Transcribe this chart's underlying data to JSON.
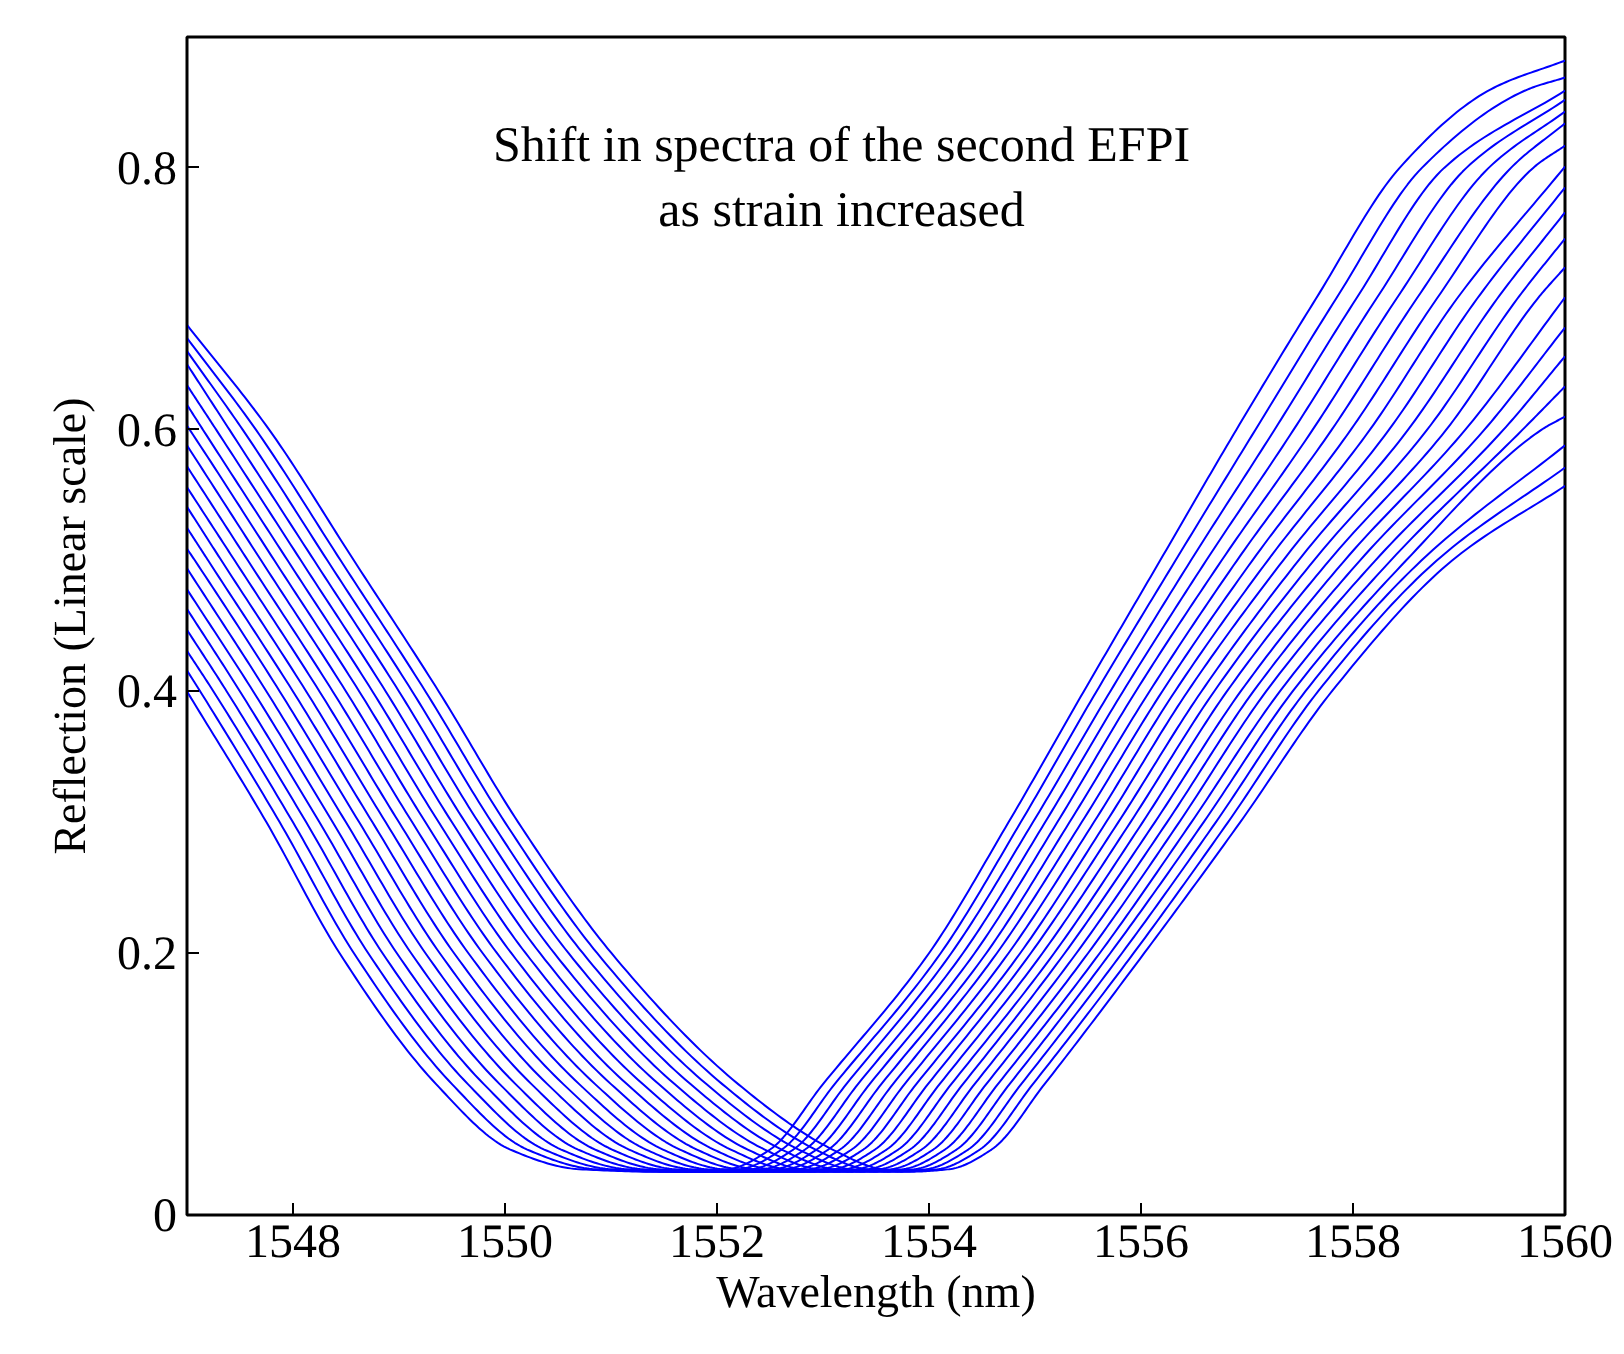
{
  "chart_data": {
    "type": "line",
    "xlabel": "Wavelength (nm)",
    "ylabel": "Reflection (Linear scale)",
    "annotations": [
      "Shift in spectra of the second EFPI\nas strain increased"
    ],
    "xlim": [
      1547,
      1560
    ],
    "ylim": [
      0,
      0.9
    ],
    "xticks": [
      1548,
      1550,
      1552,
      1554,
      1556,
      1558,
      1560
    ],
    "yticks": [
      0,
      0.2,
      0.4,
      0.6,
      0.8
    ],
    "grid": false,
    "series": [
      {
        "color": "#0000ff",
        "x": [
          1547,
          1547.75,
          1548.44,
          1549.35,
          1550.05,
          1550.7,
          1551.5,
          1552.1,
          1552.5,
          1553.0,
          1554.0,
          1554.75,
          1555.46,
          1556.18,
          1556.9,
          1557.65,
          1558.44,
          1559.3,
          1560
        ],
        "values": [
          0.4,
          0.3,
          0.2,
          0.1,
          0.05,
          0.035,
          0.033,
          0.035,
          0.05,
          0.1,
          0.2,
          0.3,
          0.4,
          0.5,
          0.6,
          0.7,
          0.8,
          0.86,
          0.882
        ]
      },
      {
        "color": "#0000ff",
        "x": [
          1547,
          1547.125,
          1547.875,
          1548.575,
          1549.5,
          1550.21,
          1550.85,
          1551.62,
          1552.21,
          1552.61,
          1553.11,
          1554.11,
          1554.865,
          1555.58,
          1556.325,
          1557.08,
          1557.84,
          1558.65,
          1559.65,
          1560
        ],
        "values": [
          0.416,
          0.4,
          0.3,
          0.2,
          0.1,
          0.05,
          0.035,
          0.033,
          0.035,
          0.05,
          0.1,
          0.2,
          0.3,
          0.4,
          0.5,
          0.6,
          0.7,
          0.8,
          0.86,
          0.869
        ]
      },
      {
        "color": "#0000ff",
        "x": [
          1547,
          1547.25,
          1548.0,
          1548.71,
          1549.65,
          1550.37,
          1551.0,
          1551.74,
          1552.32,
          1552.72,
          1553.22,
          1554.21,
          1554.98,
          1555.71,
          1556.47,
          1557.26,
          1558.03,
          1558.86,
          1560
        ],
        "values": [
          0.431,
          0.4,
          0.3,
          0.2,
          0.1,
          0.05,
          0.035,
          0.033,
          0.035,
          0.05,
          0.1,
          0.2,
          0.3,
          0.4,
          0.5,
          0.6,
          0.7,
          0.8,
          0.859
        ]
      },
      {
        "color": "#0000ff",
        "x": [
          1547,
          1547.375,
          1548.125,
          1548.845,
          1549.8,
          1550.53,
          1551.15,
          1551.86,
          1552.43,
          1552.83,
          1553.33,
          1554.32,
          1555.095,
          1555.83,
          1556.615,
          1557.44,
          1558.22,
          1559.07,
          1560
        ],
        "values": [
          0.447,
          0.4,
          0.3,
          0.2,
          0.1,
          0.05,
          0.035,
          0.033,
          0.035,
          0.05,
          0.1,
          0.2,
          0.3,
          0.4,
          0.5,
          0.6,
          0.7,
          0.8,
          0.852
        ]
      },
      {
        "color": "#0000ff",
        "x": [
          1547,
          1547.5,
          1548.25,
          1548.98,
          1549.95,
          1550.69,
          1551.3,
          1551.98,
          1552.54,
          1552.94,
          1553.44,
          1554.43,
          1555.21,
          1555.95,
          1556.76,
          1557.62,
          1558.41,
          1559.28,
          1560
        ],
        "values": [
          0.463,
          0.4,
          0.3,
          0.2,
          0.1,
          0.05,
          0.035,
          0.033,
          0.035,
          0.05,
          0.1,
          0.2,
          0.3,
          0.4,
          0.5,
          0.6,
          0.7,
          0.8,
          0.843
        ]
      },
      {
        "color": "#0000ff",
        "x": [
          1547,
          1547.625,
          1548.375,
          1549.115,
          1550.1,
          1550.85,
          1551.45,
          1552.1,
          1552.65,
          1553.05,
          1553.55,
          1554.54,
          1555.325,
          1556.08,
          1556.905,
          1557.8,
          1558.6,
          1559.49,
          1560
        ],
        "values": [
          0.478,
          0.4,
          0.3,
          0.2,
          0.1,
          0.05,
          0.035,
          0.033,
          0.035,
          0.05,
          0.1,
          0.2,
          0.3,
          0.4,
          0.5,
          0.6,
          0.7,
          0.8,
          0.834
        ]
      },
      {
        "color": "#0000ff",
        "x": [
          1547,
          1547.75,
          1548.5,
          1549.25,
          1550.25,
          1551.01,
          1551.6,
          1552.22,
          1552.76,
          1553.16,
          1553.66,
          1554.64,
          1555.44,
          1556.2,
          1557.05,
          1557.98,
          1558.79,
          1559.7,
          1560
        ],
        "values": [
          0.494,
          0.4,
          0.3,
          0.2,
          0.1,
          0.05,
          0.035,
          0.033,
          0.035,
          0.05,
          0.1,
          0.2,
          0.3,
          0.4,
          0.5,
          0.6,
          0.7,
          0.8,
          0.817
        ]
      },
      {
        "color": "#0000ff",
        "x": [
          1547,
          1547.075,
          1547.875,
          1548.625,
          1549.385,
          1550.4,
          1551.17,
          1551.75,
          1552.34,
          1552.87,
          1553.27,
          1553.77,
          1554.75,
          1555.555,
          1556.32,
          1557.195,
          1558.16,
          1558.98,
          1560
        ],
        "values": [
          0.509,
          0.5,
          0.4,
          0.3,
          0.2,
          0.1,
          0.05,
          0.035,
          0.033,
          0.035,
          0.05,
          0.1,
          0.2,
          0.3,
          0.4,
          0.5,
          0.6,
          0.7,
          0.801
        ]
      },
      {
        "color": "#0000ff",
        "x": [
          1547,
          1547.2,
          1548.0,
          1548.75,
          1549.52,
          1550.55,
          1551.33,
          1551.9,
          1552.46,
          1552.98,
          1553.38,
          1553.88,
          1554.86,
          1555.67,
          1556.44,
          1557.34,
          1558.34,
          1559.17,
          1560
        ],
        "values": [
          0.525,
          0.5,
          0.4,
          0.3,
          0.2,
          0.1,
          0.05,
          0.035,
          0.033,
          0.035,
          0.05,
          0.1,
          0.2,
          0.3,
          0.4,
          0.5,
          0.6,
          0.7,
          0.785
        ]
      },
      {
        "color": "#0000ff",
        "x": [
          1547,
          1547.325,
          1548.125,
          1548.875,
          1549.655,
          1550.7,
          1551.49,
          1552.05,
          1552.58,
          1553.09,
          1553.49,
          1553.99,
          1554.96,
          1555.785,
          1556.57,
          1557.485,
          1558.52,
          1559.36,
          1560
        ],
        "values": [
          0.541,
          0.5,
          0.4,
          0.3,
          0.2,
          0.1,
          0.05,
          0.035,
          0.033,
          0.035,
          0.05,
          0.1,
          0.2,
          0.3,
          0.4,
          0.5,
          0.6,
          0.7,
          0.766
        ]
      },
      {
        "color": "#0000ff",
        "x": [
          1547,
          1547.45,
          1548.25,
          1549.0,
          1549.79,
          1550.85,
          1551.65,
          1552.2,
          1552.7,
          1553.2,
          1553.6,
          1554.1,
          1555.07,
          1555.9,
          1556.69,
          1557.63,
          1558.7,
          1559.55,
          1560
        ],
        "values": [
          0.556,
          0.5,
          0.4,
          0.3,
          0.2,
          0.1,
          0.05,
          0.035,
          0.033,
          0.035,
          0.05,
          0.1,
          0.2,
          0.3,
          0.4,
          0.5,
          0.6,
          0.7,
          0.746
        ]
      },
      {
        "color": "#0000ff",
        "x": [
          1547,
          1547.575,
          1548.375,
          1549.125,
          1549.925,
          1551.0,
          1551.81,
          1552.35,
          1552.82,
          1553.31,
          1553.71,
          1554.21,
          1555.18,
          1556.015,
          1556.81,
          1557.775,
          1558.88,
          1559.74,
          1560
        ],
        "values": [
          0.572,
          0.5,
          0.4,
          0.3,
          0.2,
          0.1,
          0.05,
          0.035,
          0.033,
          0.035,
          0.05,
          0.1,
          0.2,
          0.3,
          0.4,
          0.5,
          0.6,
          0.7,
          0.724
        ]
      },
      {
        "color": "#0000ff",
        "x": [
          1547,
          1547.7,
          1548.5,
          1549.25,
          1550.06,
          1551.15,
          1551.97,
          1552.5,
          1552.94,
          1553.42,
          1553.82,
          1554.32,
          1555.28,
          1556.13,
          1556.94,
          1557.92,
          1559.06,
          1560
        ],
        "values": [
          0.588,
          0.5,
          0.4,
          0.3,
          0.2,
          0.1,
          0.05,
          0.035,
          0.033,
          0.035,
          0.05,
          0.1,
          0.2,
          0.3,
          0.4,
          0.5,
          0.6,
          0.701
        ]
      },
      {
        "color": "#0000ff",
        "x": [
          1547,
          1547.025,
          1547.825,
          1548.625,
          1549.375,
          1550.195,
          1551.3,
          1552.13,
          1552.65,
          1553.06,
          1553.53,
          1553.93,
          1554.43,
          1555.39,
          1556.245,
          1557.06,
          1558.065,
          1559.24,
          1560
        ],
        "values": [
          0.603,
          0.6,
          0.5,
          0.4,
          0.3,
          0.2,
          0.1,
          0.05,
          0.035,
          0.033,
          0.035,
          0.05,
          0.1,
          0.2,
          0.3,
          0.4,
          0.5,
          0.6,
          0.678
        ]
      },
      {
        "color": "#0000ff",
        "x": [
          1547,
          1547.15,
          1547.95,
          1548.75,
          1549.5,
          1550.33,
          1551.45,
          1552.29,
          1552.8,
          1553.18,
          1553.64,
          1554.04,
          1554.54,
          1555.5,
          1556.36,
          1557.18,
          1558.21,
          1559.42,
          1560
        ],
        "values": [
          0.619,
          0.6,
          0.5,
          0.4,
          0.3,
          0.2,
          0.1,
          0.05,
          0.035,
          0.033,
          0.035,
          0.05,
          0.1,
          0.2,
          0.3,
          0.4,
          0.5,
          0.6,
          0.656
        ]
      },
      {
        "color": "#0000ff",
        "x": [
          1547,
          1547.275,
          1548.075,
          1548.875,
          1549.625,
          1550.465,
          1551.6,
          1552.45,
          1552.95,
          1553.3,
          1553.75,
          1554.15,
          1554.65,
          1555.61,
          1556.475,
          1557.31,
          1558.355,
          1559.6,
          1560
        ],
        "values": [
          0.634,
          0.6,
          0.5,
          0.4,
          0.3,
          0.2,
          0.1,
          0.05,
          0.035,
          0.033,
          0.035,
          0.05,
          0.1,
          0.2,
          0.3,
          0.4,
          0.5,
          0.6,
          0.633
        ]
      },
      {
        "color": "#0000ff",
        "x": [
          1547,
          1547.4,
          1548.2,
          1549.0,
          1549.75,
          1550.6,
          1551.75,
          1552.61,
          1553.1,
          1553.42,
          1553.86,
          1554.26,
          1554.76,
          1555.71,
          1556.59,
          1557.43,
          1558.5,
          1559.78,
          1560
        ],
        "values": [
          0.65,
          0.6,
          0.5,
          0.4,
          0.3,
          0.2,
          0.1,
          0.05,
          0.035,
          0.033,
          0.035,
          0.05,
          0.1,
          0.2,
          0.3,
          0.4,
          0.5,
          0.6,
          0.61
        ]
      },
      {
        "color": "#0000ff",
        "x": [
          1547,
          1547.525,
          1548.325,
          1549.125,
          1549.875,
          1550.735,
          1551.9,
          1552.77,
          1553.25,
          1553.54,
          1553.97,
          1554.37,
          1554.87,
          1555.82,
          1556.705,
          1557.55,
          1558.645,
          1560
        ],
        "values": [
          0.66,
          0.6,
          0.5,
          0.4,
          0.3,
          0.2,
          0.1,
          0.05,
          0.035,
          0.033,
          0.035,
          0.05,
          0.1,
          0.2,
          0.3,
          0.4,
          0.5,
          0.588
        ]
      },
      {
        "color": "#0000ff",
        "x": [
          1547,
          1547.65,
          1548.45,
          1549.25,
          1550.0,
          1550.87,
          1552.05,
          1552.93,
          1553.4,
          1553.66,
          1554.08,
          1554.48,
          1554.98,
          1555.93,
          1556.82,
          1557.67,
          1558.79,
          1560
        ],
        "values": [
          0.67,
          0.6,
          0.5,
          0.4,
          0.3,
          0.2,
          0.1,
          0.05,
          0.035,
          0.033,
          0.035,
          0.05,
          0.1,
          0.2,
          0.3,
          0.4,
          0.5,
          0.571
        ]
      },
      {
        "color": "#0000ff",
        "x": [
          1547,
          1547.775,
          1548.575,
          1549.375,
          1550.125,
          1551.005,
          1552.2,
          1553.09,
          1553.55,
          1553.78,
          1554.19,
          1554.59,
          1555.09,
          1556.03,
          1556.935,
          1557.8,
          1558.935,
          1560
        ],
        "values": [
          0.68,
          0.6,
          0.5,
          0.4,
          0.3,
          0.2,
          0.1,
          0.05,
          0.035,
          0.033,
          0.035,
          0.05,
          0.1,
          0.2,
          0.3,
          0.4,
          0.5,
          0.557
        ]
      }
    ]
  }
}
